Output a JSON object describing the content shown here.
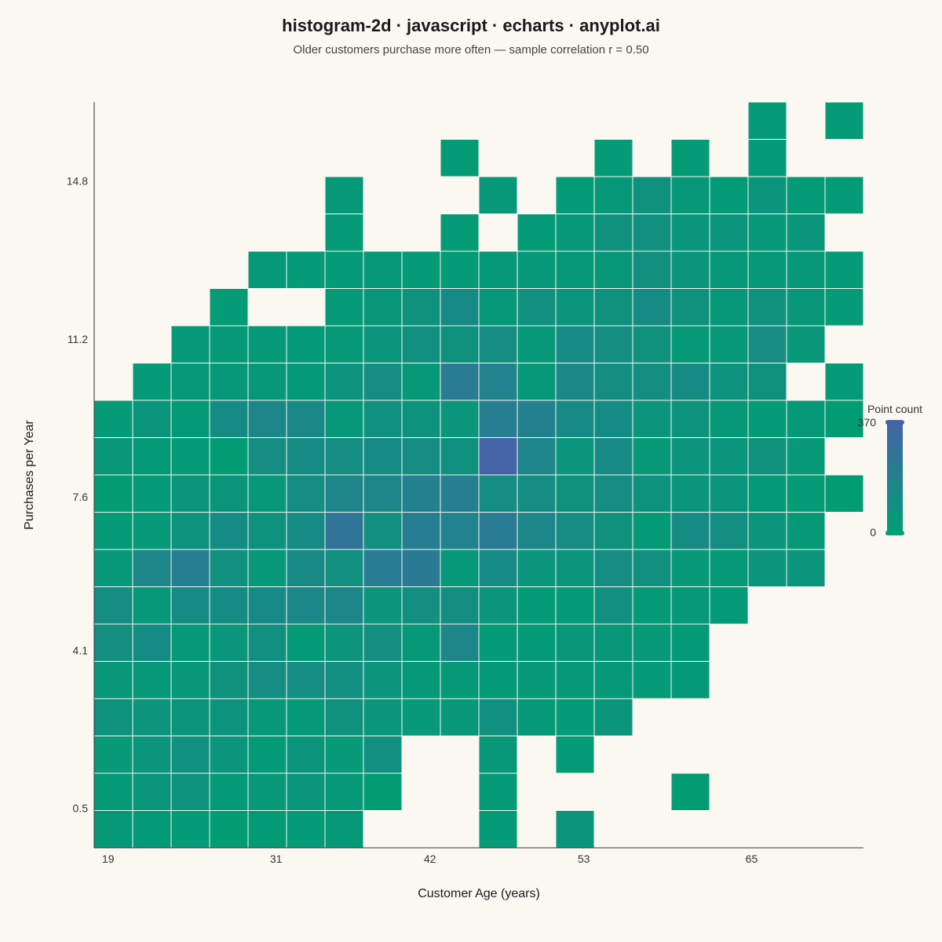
{
  "chart_data": {
    "type": "heatmap",
    "title": "histogram-2d · javascript · echarts · anyplot.ai",
    "subtitle": "Older customers purchase more often — sample correlation r = 0.50",
    "xlabel": "Customer Age (years)",
    "ylabel": "Purchases per Year",
    "xlim": [
      18,
      73
    ],
    "ylim": [
      -0.4,
      16.6
    ],
    "x_bin_edges": [
      18.0,
      20.75,
      23.5,
      26.25,
      29.0,
      31.75,
      34.5,
      37.25,
      40.0,
      42.75,
      45.5,
      48.25,
      51.0,
      53.75,
      56.5,
      59.25,
      62.0,
      64.75,
      67.5,
      70.25,
      73.0
    ],
    "y_bin_edges": [
      -0.4,
      0.45,
      1.3,
      2.15,
      3.0,
      3.85,
      4.7,
      5.55,
      6.4,
      7.25,
      8.1,
      8.95,
      9.8,
      10.65,
      11.5,
      12.35,
      13.2,
      14.05,
      14.9,
      15.75,
      16.6
    ],
    "x_ticks": [
      19,
      31,
      42,
      53,
      65
    ],
    "y_ticks": [
      0.5,
      4.1,
      7.6,
      11.2,
      14.8
    ],
    "x_tick_labels": [
      "19",
      "31",
      "42",
      "53",
      "65"
    ],
    "y_tick_labels": [
      "0.5",
      "4.1",
      "7.6",
      "11.2",
      "14.8"
    ],
    "counts": [
      [
        30,
        25,
        20,
        15,
        18,
        22,
        30,
        0,
        0,
        0,
        20,
        0,
        60,
        0,
        0,
        0,
        0,
        0,
        0,
        0
      ],
      [
        28,
        55,
        70,
        25,
        35,
        50,
        30,
        10,
        0,
        0,
        20,
        0,
        0,
        0,
        0,
        10,
        0,
        0,
        0,
        0
      ],
      [
        35,
        60,
        85,
        60,
        25,
        55,
        35,
        90,
        0,
        0,
        45,
        0,
        20,
        0,
        0,
        0,
        0,
        0,
        0,
        0
      ],
      [
        75,
        65,
        55,
        70,
        40,
        30,
        80,
        50,
        35,
        45,
        90,
        40,
        20,
        60,
        0,
        0,
        0,
        0,
        0,
        0
      ],
      [
        45,
        40,
        45,
        80,
        110,
        105,
        95,
        60,
        40,
        30,
        25,
        35,
        35,
        30,
        20,
        25,
        0,
        0,
        0,
        0
      ],
      [
        100,
        115,
        30,
        50,
        90,
        25,
        65,
        100,
        30,
        150,
        20,
        25,
        45,
        45,
        35,
        25,
        0,
        0,
        0,
        0
      ],
      [
        110,
        40,
        120,
        120,
        130,
        145,
        150,
        60,
        100,
        100,
        60,
        20,
        20,
        90,
        25,
        40,
        25,
        0,
        0,
        0
      ],
      [
        40,
        155,
        200,
        90,
        40,
        135,
        90,
        220,
        230,
        40,
        130,
        60,
        60,
        110,
        90,
        35,
        30,
        60,
        60,
        0
      ],
      [
        20,
        35,
        70,
        120,
        75,
        120,
        260,
        90,
        210,
        180,
        220,
        150,
        110,
        80,
        25,
        120,
        100,
        60,
        30,
        0
      ],
      [
        15,
        20,
        50,
        55,
        40,
        110,
        160,
        150,
        190,
        200,
        110,
        110,
        80,
        110,
        70,
        50,
        60,
        25,
        20,
        10
      ],
      [
        45,
        25,
        20,
        10,
        110,
        120,
        110,
        120,
        110,
        85,
        370,
        160,
        50,
        130,
        35,
        60,
        50,
        80,
        35,
        0
      ],
      [
        20,
        60,
        25,
        130,
        150,
        140,
        40,
        85,
        70,
        50,
        200,
        190,
        130,
        115,
        60,
        70,
        40,
        20,
        30,
        10
      ],
      [
        0,
        20,
        30,
        40,
        40,
        25,
        70,
        110,
        40,
        220,
        180,
        40,
        140,
        100,
        100,
        120,
        70,
        80,
        0,
        20
      ],
      [
        0,
        0,
        30,
        30,
        30,
        25,
        30,
        60,
        90,
        80,
        110,
        40,
        120,
        100,
        80,
        30,
        40,
        110,
        45,
        0
      ],
      [
        0,
        0,
        0,
        20,
        0,
        0,
        20,
        45,
        80,
        130,
        40,
        90,
        60,
        80,
        120,
        80,
        40,
        80,
        45,
        20
      ],
      [
        0,
        0,
        0,
        0,
        30,
        20,
        20,
        40,
        20,
        20,
        30,
        40,
        30,
        45,
        90,
        60,
        40,
        40,
        40,
        20
      ],
      [
        0,
        0,
        0,
        0,
        0,
        0,
        20,
        0,
        0,
        20,
        0,
        20,
        40,
        80,
        90,
        50,
        60,
        40,
        50,
        0
      ],
      [
        0,
        0,
        0,
        0,
        0,
        0,
        30,
        0,
        0,
        0,
        40,
        0,
        20,
        40,
        80,
        40,
        20,
        60,
        20,
        20
      ],
      [
        0,
        0,
        0,
        0,
        0,
        0,
        0,
        0,
        0,
        20,
        0,
        0,
        0,
        20,
        0,
        20,
        0,
        20,
        0,
        0
      ],
      [
        0,
        0,
        0,
        0,
        0,
        0,
        0,
        0,
        0,
        0,
        0,
        0,
        0,
        0,
        0,
        0,
        0,
        20,
        0,
        20
      ]
    ],
    "visual_map": {
      "label": "Point count",
      "min": 0,
      "max": 370,
      "min_label": "0",
      "max_label": "370",
      "color_low": "#009E73",
      "color_high": "#4564A8"
    },
    "grid": false,
    "legend_placement": "right"
  }
}
